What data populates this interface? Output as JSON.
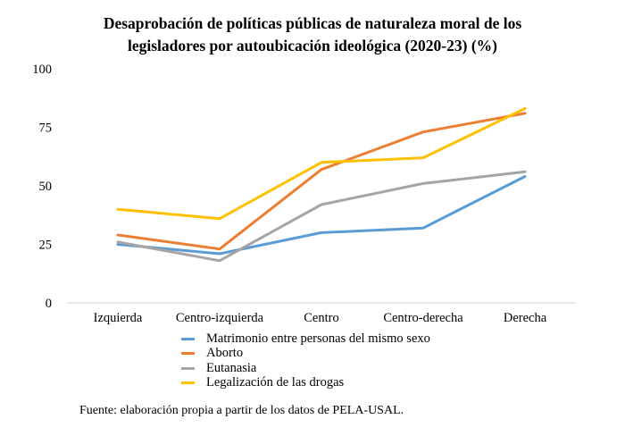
{
  "chart_data": {
    "type": "line",
    "title": "Desaprobación de políticas públicas de naturaleza moral de los legisladores por autoubicación ideológica (2020-23) (%)",
    "title_lines": [
      "Desaprobación de políticas públicas de naturaleza moral de los",
      "legisladores por autoubicación ideológica (2020-23) (%)"
    ],
    "xlabel": "",
    "ylabel": "",
    "categories": [
      "Izquierda",
      "Centro-izquierda",
      "Centro",
      "Centro-derecha",
      "Derecha"
    ],
    "ylim": [
      0,
      100
    ],
    "yticks": [
      "0",
      "25",
      "50",
      "75",
      "100"
    ],
    "grid": false,
    "legend_position": "bottom",
    "series": [
      {
        "name": "Matrimonio entre personas del mismo sexo",
        "color": "#5B9BD5",
        "values": [
          25,
          21,
          30,
          32,
          54
        ]
      },
      {
        "name": "Aborto",
        "color": "#ED7D31",
        "values": [
          29,
          23,
          57,
          73,
          81
        ]
      },
      {
        "name": "Eutanasia",
        "color": "#A5A5A5",
        "values": [
          26,
          18,
          42,
          51,
          56
        ]
      },
      {
        "name": "Legalización de las drogas",
        "color": "#FFC000",
        "values": [
          40,
          36,
          60,
          62,
          83
        ]
      }
    ],
    "source_note": "Fuente: elaboración propia a partir de los datos de PELA-USAL."
  }
}
